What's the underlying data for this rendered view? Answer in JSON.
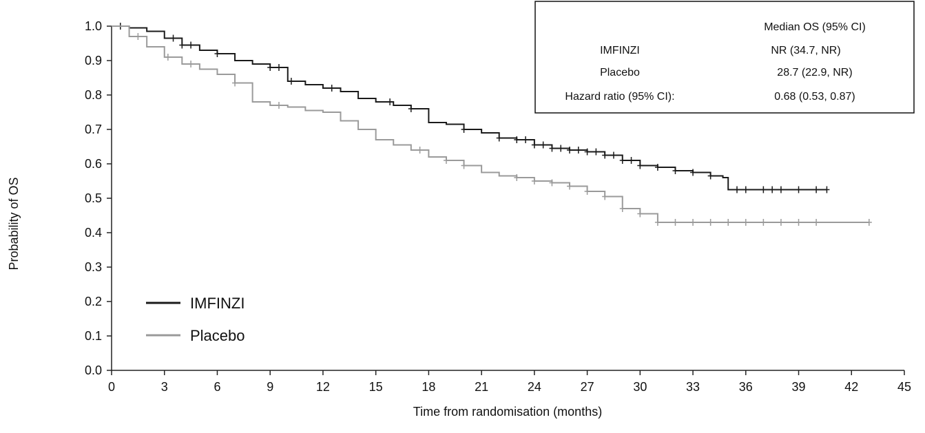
{
  "chart_data": {
    "type": "line",
    "title": "",
    "xlabel": "Time from randomisation (months)",
    "ylabel": "Probability of OS",
    "xlim": [
      0,
      45
    ],
    "ylim": [
      0,
      1.0
    ],
    "x_ticks": [
      "0",
      "3",
      "6",
      "9",
      "12",
      "15",
      "18",
      "21",
      "24",
      "27",
      "30",
      "33",
      "36",
      "39",
      "42",
      "45"
    ],
    "y_ticks": [
      "0.0",
      "0.1",
      "0.2",
      "0.3",
      "0.4",
      "0.5",
      "0.6",
      "0.7",
      "0.8",
      "0.9",
      "1.0"
    ],
    "grid": false,
    "legend_position": "bottom-left",
    "series": [
      {
        "name": "IMFINZI",
        "color": "#1a1a1a",
        "step_points": [
          [
            0,
            1.0
          ],
          [
            1,
            0.995
          ],
          [
            2,
            0.985
          ],
          [
            3,
            0.965
          ],
          [
            4,
            0.945
          ],
          [
            5,
            0.93
          ],
          [
            6,
            0.92
          ],
          [
            7,
            0.9
          ],
          [
            8,
            0.89
          ],
          [
            9,
            0.88
          ],
          [
            10,
            0.84
          ],
          [
            11,
            0.83
          ],
          [
            12,
            0.82
          ],
          [
            13,
            0.81
          ],
          [
            14,
            0.79
          ],
          [
            15,
            0.78
          ],
          [
            16,
            0.77
          ],
          [
            17,
            0.76
          ],
          [
            18,
            0.72
          ],
          [
            19,
            0.715
          ],
          [
            20,
            0.7
          ],
          [
            21,
            0.69
          ],
          [
            22,
            0.675
          ],
          [
            23,
            0.67
          ],
          [
            24,
            0.655
          ],
          [
            25,
            0.645
          ],
          [
            26,
            0.64
          ],
          [
            27,
            0.635
          ],
          [
            28,
            0.625
          ],
          [
            29,
            0.61
          ],
          [
            30,
            0.595
          ],
          [
            31,
            0.59
          ],
          [
            32,
            0.58
          ],
          [
            33,
            0.575
          ],
          [
            34,
            0.565
          ],
          [
            34.7,
            0.56
          ],
          [
            35,
            0.525
          ],
          [
            40.6,
            0.525
          ]
        ],
        "censor_x": [
          0.5,
          3.5,
          4,
          4.5,
          6,
          9,
          9.5,
          10.2,
          12.5,
          15.8,
          17,
          20,
          22,
          23,
          23.5,
          24,
          24.5,
          25,
          25.5,
          26,
          26.5,
          27,
          27.5,
          28,
          28.5,
          29,
          29.5,
          30,
          31,
          32,
          33,
          34,
          35.5,
          36,
          37,
          37.5,
          38,
          39,
          40,
          40.6
        ]
      },
      {
        "name": "Placebo",
        "color": "#9a9a9a",
        "step_points": [
          [
            0,
            1.0
          ],
          [
            1,
            0.97
          ],
          [
            2,
            0.94
          ],
          [
            3,
            0.91
          ],
          [
            4,
            0.89
          ],
          [
            5,
            0.875
          ],
          [
            6,
            0.86
          ],
          [
            7,
            0.835
          ],
          [
            8,
            0.78
          ],
          [
            9,
            0.77
          ],
          [
            10,
            0.765
          ],
          [
            11,
            0.755
          ],
          [
            12,
            0.75
          ],
          [
            13,
            0.725
          ],
          [
            14,
            0.7
          ],
          [
            15,
            0.67
          ],
          [
            16,
            0.655
          ],
          [
            17,
            0.64
          ],
          [
            18,
            0.62
          ],
          [
            19,
            0.61
          ],
          [
            20,
            0.595
          ],
          [
            21,
            0.575
          ],
          [
            22,
            0.565
          ],
          [
            23,
            0.56
          ],
          [
            24,
            0.55
          ],
          [
            25,
            0.545
          ],
          [
            26,
            0.535
          ],
          [
            27,
            0.52
          ],
          [
            28,
            0.505
          ],
          [
            29,
            0.47
          ],
          [
            30,
            0.455
          ],
          [
            31,
            0.43
          ],
          [
            43,
            0.43
          ]
        ],
        "censor_x": [
          1.5,
          3.2,
          4.5,
          7,
          9.5,
          17.5,
          19,
          20,
          23,
          24,
          25,
          26,
          27,
          28,
          29,
          30,
          31,
          32,
          33,
          34,
          35,
          36,
          37,
          38,
          39,
          40,
          43
        ]
      }
    ],
    "legend": {
      "entries": [
        "IMFINZI",
        "Placebo"
      ]
    },
    "annotation_table": {
      "header": "Median OS (95% CI)",
      "rows": [
        {
          "label": "IMFINZI",
          "value": "NR (34.7, NR)"
        },
        {
          "label": "Placebo",
          "value": "28.7 (22.9, NR)"
        },
        {
          "label": "Hazard ratio (95% CI):",
          "value": "0.68 (0.53, 0.87)"
        }
      ]
    }
  }
}
